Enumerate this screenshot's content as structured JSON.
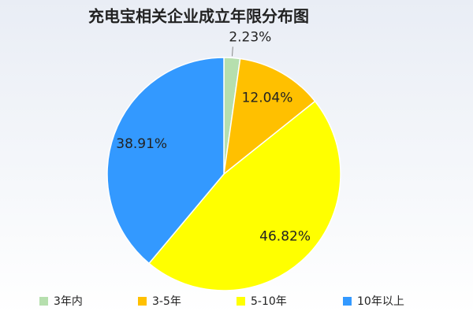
{
  "chart_data": {
    "type": "pie",
    "title": "充电宝相关企业成立年限分布图",
    "categories": [
      "3年内",
      "3-5年",
      "5-10年",
      "10年以上"
    ],
    "values": [
      2.23,
      12.04,
      46.82,
      38.91
    ],
    "value_labels": [
      "2.23%",
      "12.04%",
      "46.82%",
      "38.91%"
    ],
    "colors": [
      "#b6dfae",
      "#ffc000",
      "#ffff00",
      "#3399ff"
    ],
    "legend": "bottom"
  }
}
